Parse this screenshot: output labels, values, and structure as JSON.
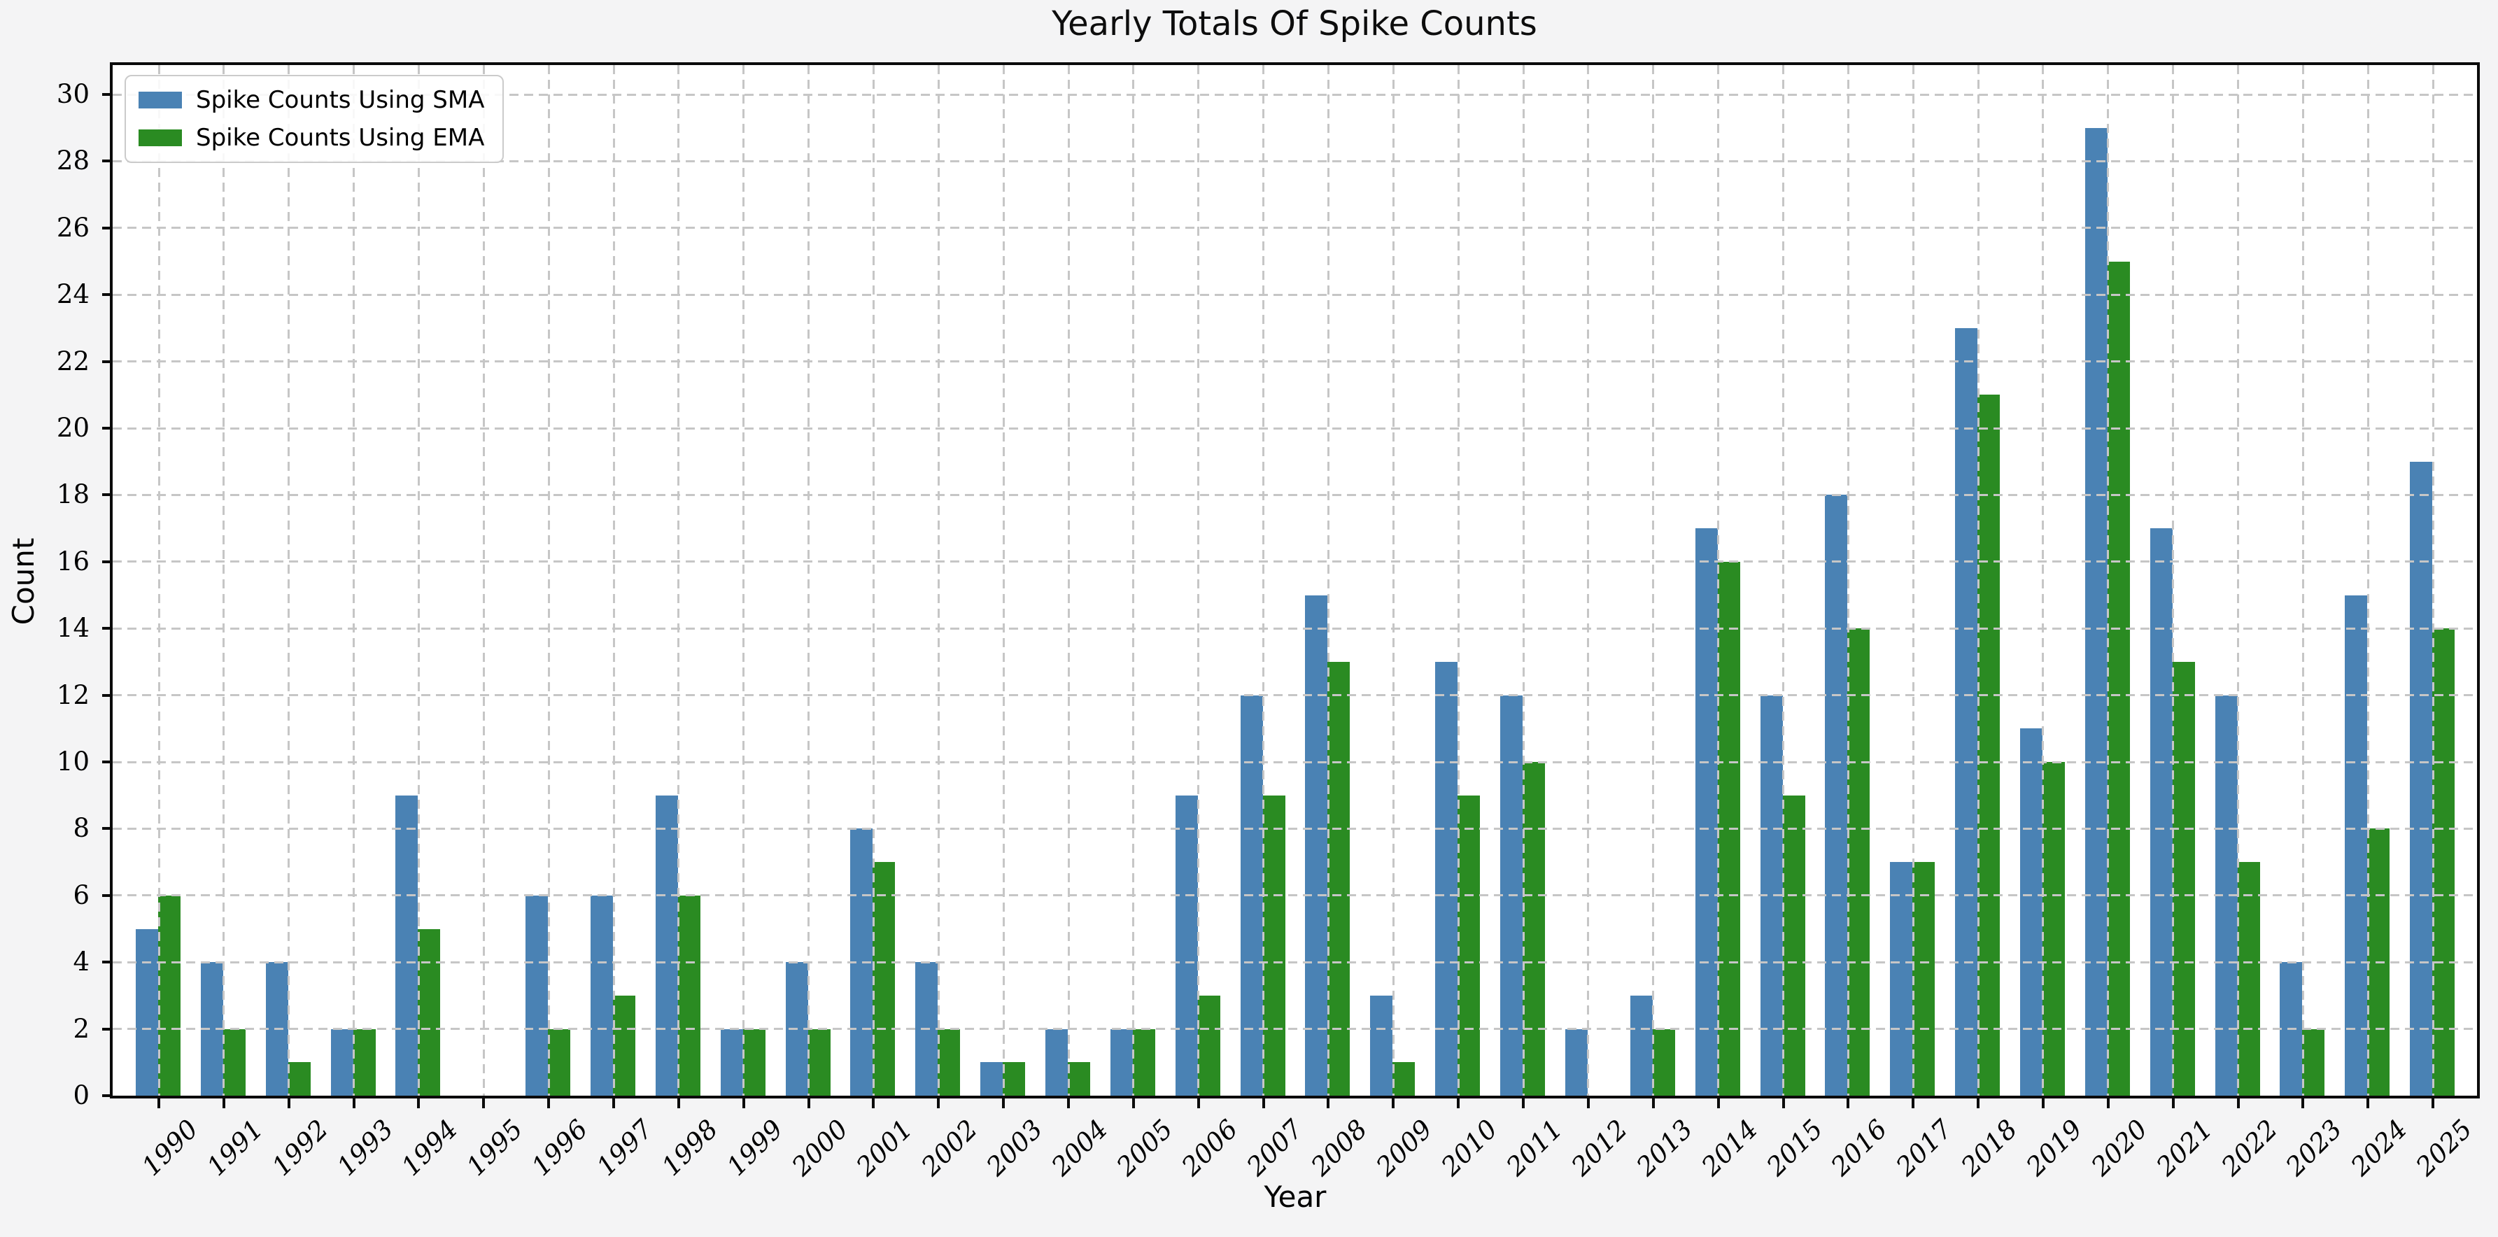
{
  "figure": {
    "title": "Yearly Totals Of Spike Counts",
    "xlabel": "Year",
    "ylabel": "Count"
  },
  "chart_data": {
    "type": "bar",
    "title": "Yearly Totals Of Spike Counts",
    "xlabel": "Year",
    "ylabel": "Count",
    "categories": [
      "1990",
      "1991",
      "1992",
      "1993",
      "1994",
      "1995",
      "1996",
      "1997",
      "1998",
      "1999",
      "2000",
      "2001",
      "2002",
      "2003",
      "2004",
      "2005",
      "2006",
      "2007",
      "2008",
      "2009",
      "2010",
      "2011",
      "2012",
      "2013",
      "2014",
      "2015",
      "2016",
      "2017",
      "2018",
      "2019",
      "2020",
      "2021",
      "2022",
      "2023",
      "2024",
      "2025"
    ],
    "series": [
      {
        "name": "Spike Counts Using SMA",
        "color": "#4A82B4",
        "values": [
          5,
          4,
          4,
          2,
          9,
          0,
          6,
          6,
          9,
          2,
          4,
          8,
          4,
          1,
          2,
          2,
          9,
          12,
          15,
          3,
          13,
          12,
          2,
          3,
          17,
          12,
          18,
          7,
          23,
          11,
          29,
          17,
          12,
          4,
          15,
          19
        ]
      },
      {
        "name": "Spike Counts Using EMA",
        "color": "#2A8B22",
        "values": [
          6,
          2,
          1,
          2,
          5,
          0,
          2,
          3,
          6,
          2,
          2,
          7,
          2,
          1,
          1,
          2,
          3,
          9,
          13,
          1,
          9,
          10,
          0,
          2,
          16,
          9,
          14,
          7,
          21,
          10,
          25,
          13,
          7,
          2,
          8,
          14
        ]
      }
    ],
    "ylim": [
      0,
      30
    ],
    "ytick_step": 2,
    "grid": "dashed",
    "grid_color": "#c6c6c6",
    "legend_position": "upper left",
    "plot_background": "#ffffff",
    "figure_background": "#f4f4f5"
  }
}
